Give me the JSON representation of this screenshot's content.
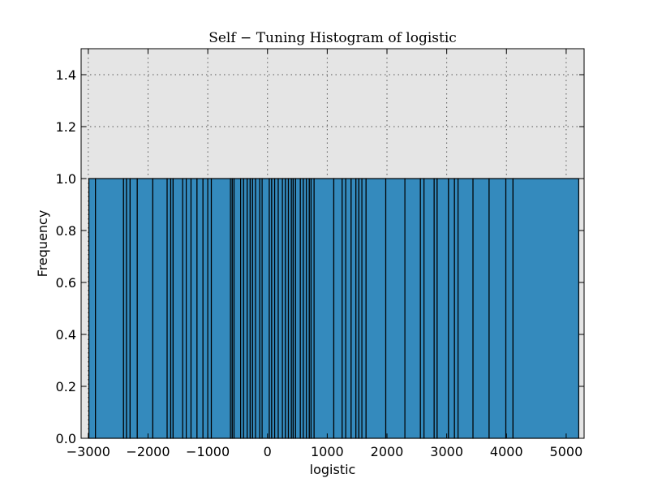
{
  "chart_data": {
    "type": "bar",
    "title": "Self − Tuning Histogram of logistic",
    "xlabel": "logistic",
    "ylabel": "Frequency",
    "xlim": [
      -3120,
      5300
    ],
    "ylim": [
      0,
      1.5
    ],
    "xticks": [
      -3000,
      -2000,
      -1000,
      0,
      1000,
      2000,
      3000,
      4000,
      5000
    ],
    "xtick_labels": [
      "−3000",
      "−2000",
      "−1000",
      "0",
      "1000",
      "2000",
      "3000",
      "4000",
      "5000"
    ],
    "yticks": [
      0.0,
      0.2,
      0.4,
      0.6,
      0.8,
      1.0,
      1.2,
      1.4
    ],
    "ytick_labels": [
      "0.0",
      "0.2",
      "0.4",
      "0.6",
      "0.8",
      "1.0",
      "1.2",
      "1.4"
    ],
    "grid": true,
    "bar_color": "#348abd",
    "plot_background": "#e5e5e5",
    "bin_edges": [
      -2990,
      -2880,
      -2410,
      -2360,
      -2300,
      -2180,
      -1920,
      -1680,
      -1620,
      -1580,
      -1420,
      -1360,
      -1280,
      -1180,
      -1080,
      -1000,
      -940,
      -620,
      -590,
      -560,
      -450,
      -400,
      -340,
      -290,
      -250,
      -200,
      -130,
      -90,
      30,
      70,
      120,
      180,
      250,
      300,
      350,
      400,
      430,
      470,
      550,
      600,
      650,
      700,
      730,
      780,
      1110,
      1250,
      1310,
      1400,
      1480,
      1530,
      1580,
      1650,
      1980,
      2300,
      2560,
      2620,
      2790,
      2840,
      3030,
      3130,
      3190,
      3440,
      3710,
      3990,
      4110,
      5210
    ],
    "values": [
      1,
      1,
      1,
      1,
      1,
      1,
      1,
      1,
      1,
      1,
      1,
      1,
      1,
      1,
      1,
      1,
      1,
      1,
      1,
      1,
      1,
      1,
      1,
      1,
      1,
      1,
      1,
      1,
      1,
      1,
      1,
      1,
      1,
      1,
      1,
      1,
      1,
      1,
      1,
      1,
      1,
      1,
      1,
      1,
      1,
      1,
      1,
      1,
      1,
      1,
      1,
      1,
      1,
      1,
      1,
      1,
      1,
      1,
      1,
      1,
      1,
      1,
      1,
      1,
      1
    ]
  }
}
